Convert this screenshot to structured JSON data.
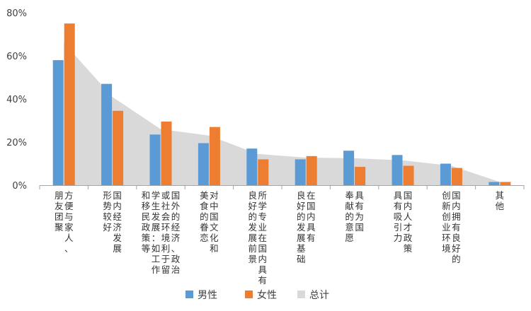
{
  "chart_data": {
    "type": "bar",
    "categories": [
      [
        "方便与家人、",
        "朋友团聚"
      ],
      [
        "国内经济发展",
        "形势较好"
      ],
      [
        "国外的经济、政治",
        "或社会环境利于留",
        "学生发展：如工作",
        "和移民政策等"
      ],
      [
        "对中国文化和",
        "美食的眷恋"
      ],
      [
        "所学专业在国内具有",
        "良好的发展前景"
      ],
      [
        "在国内具有",
        "良好的发展基础"
      ],
      [
        "具有为国",
        "奉献的意愿"
      ],
      [
        "国内人才政策",
        "具有吸引力"
      ],
      [
        "国内拥有良好的",
        "创新创业环境"
      ],
      [
        "其他"
      ]
    ],
    "series": [
      {
        "name": "男性",
        "color": "#5B9BD5",
        "values": [
          58,
          47,
          23.5,
          19.5,
          17,
          12,
          16,
          14,
          10,
          1.5
        ]
      },
      {
        "name": "女性",
        "color": "#ED7D31",
        "values": [
          75,
          34.5,
          29.5,
          27,
          12,
          13.5,
          8.5,
          9,
          8,
          1.5
        ]
      },
      {
        "name": "总计",
        "color": "#D9D9D9",
        "type": "area",
        "values": [
          66,
          41,
          26,
          23,
          14.5,
          12.8,
          12.5,
          11.5,
          9,
          1.5
        ]
      }
    ],
    "y_ticks": [
      "0%",
      "20%",
      "40%",
      "60%",
      "80%"
    ],
    "ylim": [
      0,
      80
    ],
    "legend": "bottom",
    "grid": false
  }
}
